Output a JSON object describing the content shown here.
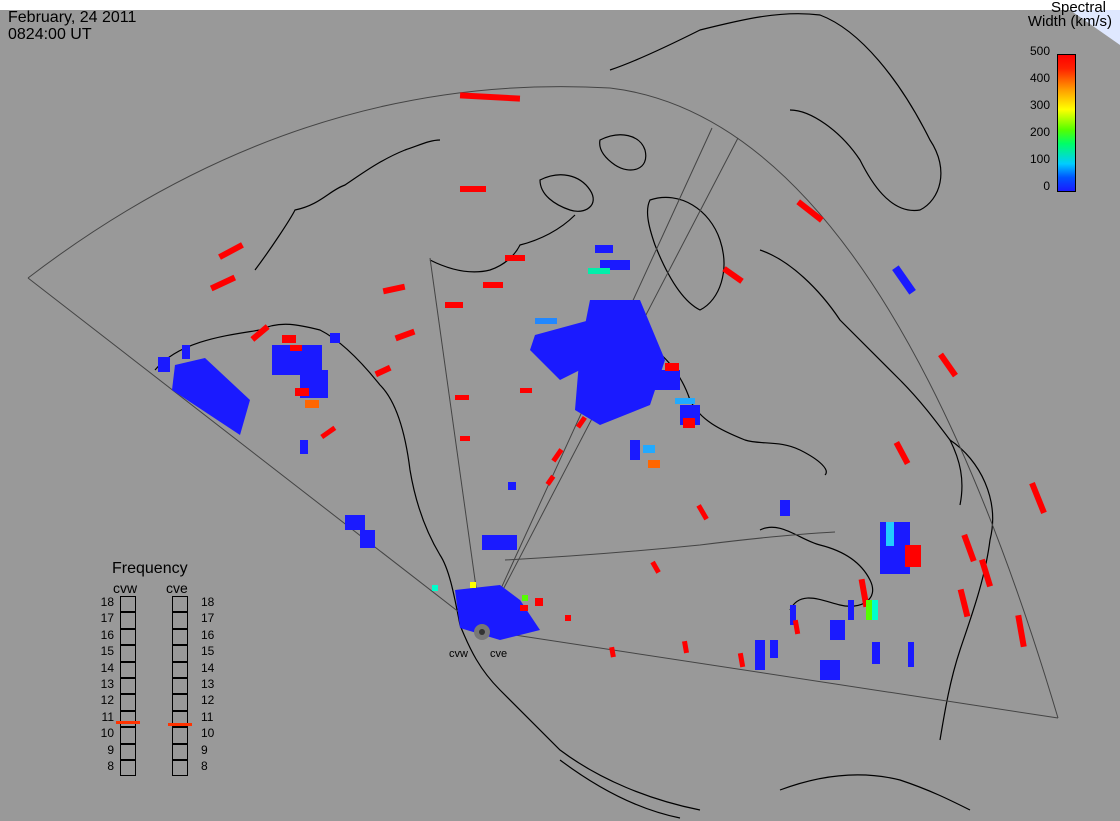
{
  "header": {
    "date": "February, 24 2011",
    "time": "0824:00 UT"
  },
  "colorbar": {
    "title_line1": "Spectral",
    "title_line2": "Width (km/s)",
    "ticks": [
      "500",
      "400",
      "300",
      "200",
      "100",
      "0"
    ]
  },
  "frequency_panel": {
    "title": "Frequency",
    "radar_left": "cvw",
    "radar_right": "cve",
    "levels": [
      "18",
      "17",
      "16",
      "15",
      "14",
      "13",
      "12",
      "11",
      "10",
      "9",
      "8"
    ],
    "cvw_value": 10.8,
    "cve_value": 10.7
  },
  "sites": {
    "left": "cvw",
    "right": "cve"
  },
  "colors": {
    "background": "#999999",
    "high": "#ff0000",
    "low": "#1a1aff"
  }
}
